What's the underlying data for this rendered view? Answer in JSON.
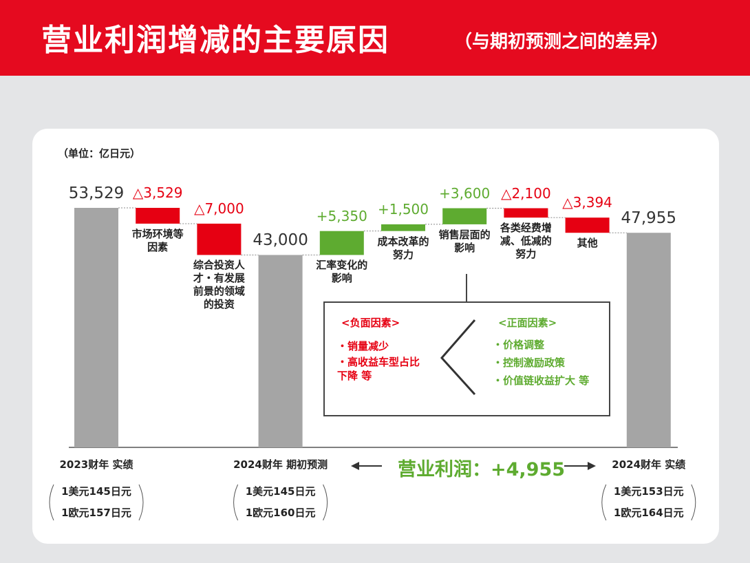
{
  "title": "营业利润增减的主要原因",
  "subtitle": "（与期初预测之间的差异）",
  "chart_data": {
    "type": "waterfall",
    "unit": "（单位：亿日元）",
    "categories": [
      "2023财年 实绩",
      "市场环境等因素",
      "综合投资人才・有发展前景的领域的投资",
      "2024财年 期初预测",
      "汇率变化的影响",
      "成本改革的努力",
      "销售层面的影响",
      "各类经费增减、低减的努力",
      "其他",
      "2024财年 实绩"
    ],
    "measure": [
      "absolute",
      "relative",
      "relative",
      "absolute",
      "relative",
      "relative",
      "relative",
      "relative",
      "relative",
      "absolute"
    ],
    "values": [
      53529,
      -3529,
      -7000,
      43000,
      5350,
      1500,
      3600,
      -2100,
      -3394,
      47955
    ],
    "value_labels": [
      "53,529",
      "△3,529",
      "△7,000",
      "43,000",
      "+5,350",
      "+1,500",
      "+3,600",
      "△2,100",
      "△3,394",
      "47,955"
    ],
    "colors": [
      "#a5a5a5",
      "#e60012",
      "#e60012",
      "#a5a5a5",
      "#5eab30",
      "#5eab30",
      "#5eab30",
      "#e60012",
      "#e60012",
      "#a5a5a5"
    ],
    "rates": [
      [
        "1美元145日元",
        "1欧元157日元"
      ],
      [
        "1美元145日元",
        "1欧元160日元"
      ],
      [
        "1美元153日元",
        "1欧元164日元"
      ]
    ],
    "summary": "营业利润：+4,955"
  },
  "factors": {
    "negative": {
      "title": "<负面因素>",
      "items": [
        "・销量减少",
        "・高收益车型占比下降 等"
      ]
    },
    "positive": {
      "title": "<正面因素>",
      "items": [
        "・价格调整",
        "・控制激励政策",
        "・价值链收益扩大 等"
      ]
    }
  }
}
